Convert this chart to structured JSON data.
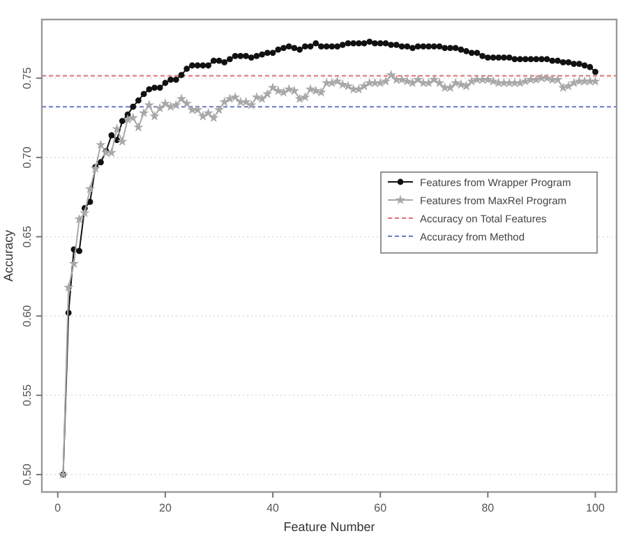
{
  "chart_data": {
    "type": "line",
    "xlabel": "Feature Number",
    "ylabel": "Accuracy",
    "x": [
      1,
      2,
      3,
      4,
      5,
      6,
      7,
      8,
      9,
      10,
      11,
      12,
      13,
      14,
      15,
      16,
      17,
      18,
      19,
      20,
      21,
      22,
      23,
      24,
      25,
      26,
      27,
      28,
      29,
      30,
      31,
      32,
      33,
      34,
      35,
      36,
      37,
      38,
      39,
      40,
      41,
      42,
      43,
      44,
      45,
      46,
      47,
      48,
      49,
      50,
      51,
      52,
      53,
      54,
      55,
      56,
      57,
      58,
      59,
      60,
      61,
      62,
      63,
      64,
      65,
      66,
      67,
      68,
      69,
      70,
      71,
      72,
      73,
      74,
      75,
      76,
      77,
      78,
      79,
      80,
      81,
      82,
      83,
      84,
      85,
      86,
      87,
      88,
      89,
      90,
      91,
      92,
      93,
      94,
      95,
      96,
      97,
      98,
      99,
      100
    ],
    "series": [
      {
        "name": "Features from Wrapper Program",
        "color": "#111111",
        "marker": "circle",
        "values": [
          0.5,
          0.602,
          0.642,
          0.641,
          0.668,
          0.672,
          0.694,
          0.697,
          0.704,
          0.714,
          0.711,
          0.723,
          0.727,
          0.732,
          0.736,
          0.74,
          0.743,
          0.744,
          0.744,
          0.747,
          0.749,
          0.749,
          0.752,
          0.756,
          0.758,
          0.758,
          0.758,
          0.758,
          0.761,
          0.761,
          0.76,
          0.762,
          0.764,
          0.764,
          0.764,
          0.763,
          0.764,
          0.765,
          0.766,
          0.766,
          0.768,
          0.769,
          0.77,
          0.769,
          0.768,
          0.77,
          0.77,
          0.772,
          0.77,
          0.77,
          0.77,
          0.77,
          0.771,
          0.772,
          0.772,
          0.772,
          0.772,
          0.773,
          0.772,
          0.772,
          0.772,
          0.771,
          0.771,
          0.77,
          0.77,
          0.769,
          0.77,
          0.77,
          0.77,
          0.77,
          0.77,
          0.769,
          0.769,
          0.769,
          0.768,
          0.767,
          0.766,
          0.766,
          0.764,
          0.763,
          0.763,
          0.763,
          0.763,
          0.763,
          0.762,
          0.762,
          0.762,
          0.762,
          0.762,
          0.762,
          0.762,
          0.761,
          0.761,
          0.76,
          0.76,
          0.759,
          0.759,
          0.758,
          0.757,
          0.754
        ]
      },
      {
        "name": "Features from MaxRel Program",
        "color": "#a8a8a8",
        "marker": "star",
        "values": [
          0.5,
          0.618,
          0.633,
          0.661,
          0.665,
          0.68,
          0.693,
          0.708,
          0.703,
          0.703,
          0.718,
          0.71,
          0.724,
          0.725,
          0.719,
          0.728,
          0.733,
          0.726,
          0.731,
          0.734,
          0.732,
          0.733,
          0.737,
          0.734,
          0.73,
          0.73,
          0.726,
          0.728,
          0.725,
          0.73,
          0.735,
          0.737,
          0.738,
          0.735,
          0.735,
          0.733,
          0.738,
          0.737,
          0.74,
          0.744,
          0.742,
          0.741,
          0.743,
          0.742,
          0.737,
          0.738,
          0.743,
          0.742,
          0.741,
          0.747,
          0.747,
          0.748,
          0.746,
          0.745,
          0.743,
          0.743,
          0.745,
          0.747,
          0.747,
          0.747,
          0.748,
          0.752,
          0.749,
          0.749,
          0.748,
          0.747,
          0.749,
          0.747,
          0.747,
          0.749,
          0.747,
          0.744,
          0.744,
          0.747,
          0.746,
          0.745,
          0.748,
          0.749,
          0.749,
          0.749,
          0.748,
          0.747,
          0.747,
          0.747,
          0.747,
          0.747,
          0.748,
          0.749,
          0.749,
          0.75,
          0.75,
          0.749,
          0.749,
          0.744,
          0.745,
          0.747,
          0.748,
          0.748,
          0.748,
          0.748
        ]
      }
    ],
    "ref_lines": [
      {
        "axis": "y",
        "value": 0.7515,
        "label": "Accuracy on Total Features",
        "color": "#e07070",
        "line_style": "dashed"
      },
      {
        "axis": "y",
        "value": 0.732,
        "label": "Accuracy from Method",
        "color": "#6a78c8",
        "line_style": "dashed"
      }
    ],
    "xlim": [
      -2.96,
      103.96
    ],
    "ylim": [
      0.489,
      0.787
    ],
    "xticks": [
      0,
      20,
      40,
      60,
      80,
      100
    ],
    "yticks": [
      {
        "value": 0.5,
        "label": "0.50"
      },
      0.55,
      {
        "value": 0.6,
        "label": "0.60"
      },
      0.65,
      {
        "value": 0.7,
        "label": "0.70"
      },
      0.75
    ],
    "grid": "y",
    "legend": "right",
    "line_style": "solid"
  }
}
